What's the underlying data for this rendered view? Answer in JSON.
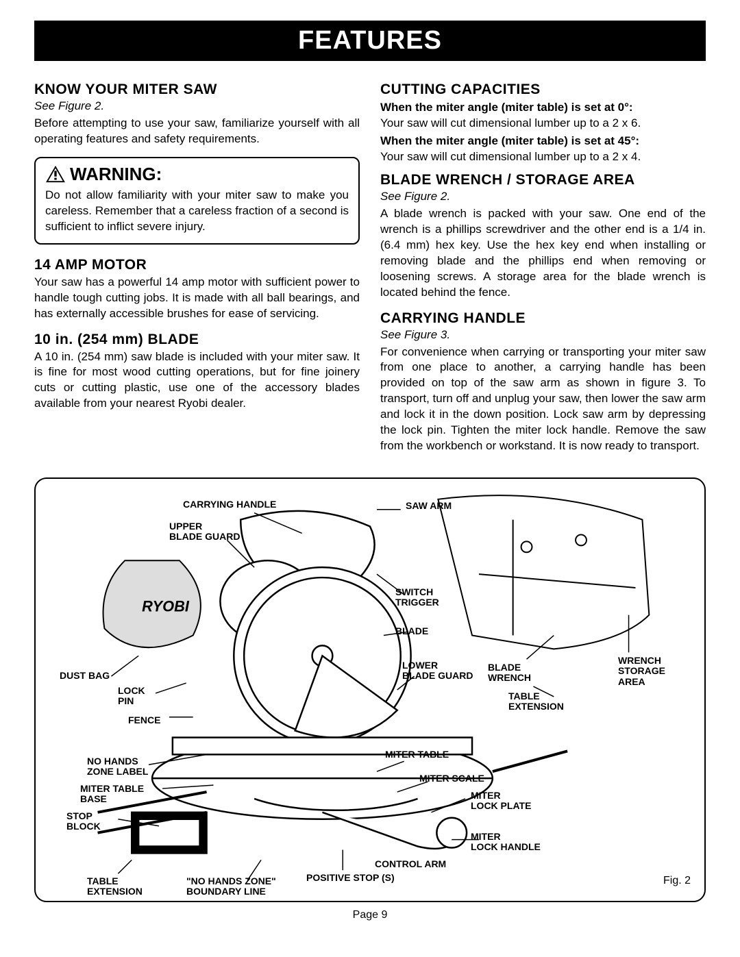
{
  "title": "FEATURES",
  "left_col": {
    "know_head": "KNOW YOUR MITER SAW",
    "know_fig": "See Figure 2.",
    "know_body": "Before attempting to use your saw, familiarize yourself with all operating features and safety requirements.",
    "warning_head": "WARNING:",
    "warning_body": "Do not allow familiarity with your miter saw to make you careless. Remember that a careless fraction of a second is sufficient to inflict severe injury.",
    "motor_head": "14 AMP MOTOR",
    "motor_body": "Your saw has a powerful 14 amp motor with sufficient power to handle tough cutting jobs. It is made with all ball bearings, and has externally accessible brushes for ease of servicing.",
    "blade_head": "10 in. (254 mm) BLADE",
    "blade_body": "A 10 in. (254 mm) saw blade is included with your miter saw. It is fine for most wood cutting operations, but for fine joinery cuts or cutting plastic, use one of the accessory blades available from your nearest Ryobi dealer."
  },
  "right_col": {
    "cut_head": "CUTTING CAPACITIES",
    "cut_at0_label": "When the miter angle (miter table) is set at 0°:",
    "cut_at0_body": "Your saw will cut dimensional lumber up to a 2 x 6.",
    "cut_at45_label": "When the miter angle (miter table) is set at 45°:",
    "cut_at45_body": "Your saw will cut dimensional lumber up to a 2 x 4.",
    "wrench_head": "BLADE WRENCH / STORAGE AREA",
    "wrench_fig": "See Figure 2.",
    "wrench_body": "A blade wrench is packed with your saw. One end of the wrench is a phillips screwdriver and the other end is a 1/4 in. (6.4 mm) hex key. Use the hex key end when installing or removing blade and the phillips end when removing or loosening screws. A storage area for the blade wrench is located behind the fence.",
    "carry_head": "CARRYING HANDLE",
    "carry_fig": "See Figure 3.",
    "carry_body": "For convenience when carrying or transporting your miter saw from one place to another, a carrying handle has been provided on top of the saw arm as shown in figure 3. To transport, turn off and unplug your saw, then lower the saw arm and lock it in the down position. Lock saw arm by depressing the lock pin. Tighten the miter lock handle. Remove the saw from the workbench or workstand. It is now ready to transport."
  },
  "figure": {
    "fig_num": "Fig. 2",
    "labels": {
      "carrying_handle": "CARRYING HANDLE",
      "upper_blade_guard": "UPPER\nBLADE GUARD",
      "dust_bag": "DUST BAG",
      "lock_pin": "LOCK\nPIN",
      "fence": "FENCE",
      "no_hands_zone_label": "NO HANDS\nZONE LABEL",
      "miter_table_base": "MITER TABLE\nBASE",
      "stop_block": "STOP\nBLOCK",
      "table_extension_left": "TABLE\nEXTENSION",
      "no_hands_boundary": "\"NO HANDS ZONE\"\nBOUNDARY LINE",
      "positive_stop": "POSITIVE STOP (S)",
      "saw_arm": "SAW ARM",
      "switch_trigger": "SWITCH\nTRIGGER",
      "blade": "BLADE",
      "lower_blade_guard": "LOWER\nBLADE GUARD",
      "blade_wrench": "BLADE\nWRENCH",
      "wrench_storage": "WRENCH\nSTORAGE\nAREA",
      "table_extension_right": "TABLE\nEXTENSION",
      "miter_table": "MITER TABLE",
      "miter_scale": "MITER SCALE",
      "miter_lock_plate": "MITER\nLOCK PLATE",
      "miter_lock_handle": "MITER\nLOCK HANDLE",
      "control_arm": "CONTROL ARM"
    }
  },
  "page_num": "Page 9",
  "colors": {
    "black": "#000000",
    "white": "#ffffff"
  }
}
